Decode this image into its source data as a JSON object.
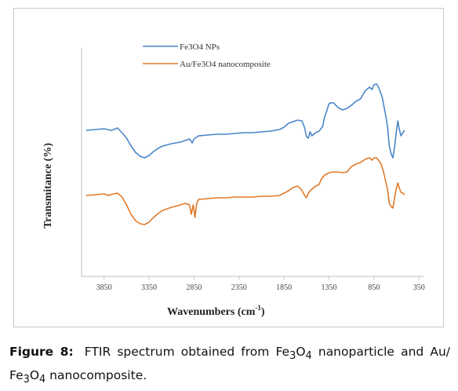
{
  "chart_data": {
    "type": "line",
    "xlabel": "Wavenumbers (cm",
    "xlabel_sup": "-1",
    "xlabel_close": ")",
    "ylabel": "Transmitance (%)",
    "xlim": [
      4100,
      300
    ],
    "x_reversed": true,
    "x_ticks": [
      "3850",
      "3350",
      "2850",
      "2350",
      "1850",
      "1350",
      "850",
      "350"
    ],
    "legend_position": "top-left",
    "grid": false,
    "series": [
      {
        "name": "Fe3O4 NPs",
        "color": "#4a86c8",
        "points": [
          [
            4050,
            155
          ],
          [
            3950,
            154
          ],
          [
            3850,
            153
          ],
          [
            3770,
            155
          ],
          [
            3700,
            152
          ],
          [
            3650,
            158
          ],
          [
            3600,
            165
          ],
          [
            3550,
            175
          ],
          [
            3500,
            183
          ],
          [
            3450,
            188
          ],
          [
            3400,
            190
          ],
          [
            3350,
            187
          ],
          [
            3300,
            182
          ],
          [
            3250,
            178
          ],
          [
            3200,
            175
          ],
          [
            3100,
            172
          ],
          [
            3000,
            170
          ],
          [
            2950,
            168
          ],
          [
            2900,
            166
          ],
          [
            2870,
            171
          ],
          [
            2850,
            166
          ],
          [
            2800,
            162
          ],
          [
            2700,
            161
          ],
          [
            2600,
            160
          ],
          [
            2500,
            160
          ],
          [
            2400,
            159
          ],
          [
            2300,
            158
          ],
          [
            2200,
            158
          ],
          [
            2100,
            157
          ],
          [
            2000,
            156
          ],
          [
            1900,
            154
          ],
          [
            1850,
            151
          ],
          [
            1800,
            146
          ],
          [
            1750,
            144
          ],
          [
            1700,
            142
          ],
          [
            1650,
            143
          ],
          [
            1620,
            152
          ],
          [
            1600,
            163
          ],
          [
            1580,
            165
          ],
          [
            1560,
            157
          ],
          [
            1540,
            162
          ],
          [
            1500,
            158
          ],
          [
            1460,
            156
          ],
          [
            1420,
            150
          ],
          [
            1400,
            138
          ],
          [
            1380,
            132
          ],
          [
            1350,
            121
          ],
          [
            1330,
            120
          ],
          [
            1300,
            120
          ],
          [
            1250,
            126
          ],
          [
            1200,
            129
          ],
          [
            1150,
            127
          ],
          [
            1100,
            123
          ],
          [
            1050,
            118
          ],
          [
            1000,
            115
          ],
          [
            950,
            105
          ],
          [
            900,
            100
          ],
          [
            870,
            103
          ],
          [
            850,
            97
          ],
          [
            820,
            96
          ],
          [
            800,
            100
          ],
          [
            760,
            112
          ],
          [
            720,
            136
          ],
          [
            700,
            150
          ],
          [
            680,
            175
          ],
          [
            660,
            185
          ],
          [
            640,
            190
          ],
          [
            620,
            175
          ],
          [
            600,
            155
          ],
          [
            585,
            143
          ],
          [
            570,
            153
          ],
          [
            550,
            162
          ],
          [
            530,
            158
          ],
          [
            510,
            155
          ]
        ]
      },
      {
        "name": "Au/Fe3O4 nanocomposite",
        "color": "#e07a2a",
        "points": [
          [
            4050,
            238
          ],
          [
            3950,
            237
          ],
          [
            3850,
            236
          ],
          [
            3800,
            238
          ],
          [
            3750,
            236
          ],
          [
            3700,
            235
          ],
          [
            3650,
            240
          ],
          [
            3600,
            250
          ],
          [
            3550,
            262
          ],
          [
            3500,
            270
          ],
          [
            3450,
            274
          ],
          [
            3400,
            275
          ],
          [
            3350,
            272
          ],
          [
            3300,
            266
          ],
          [
            3250,
            261
          ],
          [
            3200,
            257
          ],
          [
            3100,
            253
          ],
          [
            3000,
            250
          ],
          [
            2950,
            248
          ],
          [
            2900,
            250
          ],
          [
            2880,
            262
          ],
          [
            2860,
            250
          ],
          [
            2850,
            256
          ],
          [
            2840,
            266
          ],
          [
            2820,
            248
          ],
          [
            2800,
            243
          ],
          [
            2700,
            242
          ],
          [
            2600,
            241
          ],
          [
            2500,
            241
          ],
          [
            2400,
            240
          ],
          [
            2300,
            240
          ],
          [
            2200,
            240
          ],
          [
            2100,
            239
          ],
          [
            2000,
            239
          ],
          [
            1900,
            238
          ],
          [
            1850,
            235
          ],
          [
            1800,
            232
          ],
          [
            1750,
            228
          ],
          [
            1700,
            226
          ],
          [
            1660,
            230
          ],
          [
            1620,
            238
          ],
          [
            1600,
            241
          ],
          [
            1580,
            235
          ],
          [
            1560,
            232
          ],
          [
            1540,
            230
          ],
          [
            1500,
            226
          ],
          [
            1460,
            224
          ],
          [
            1440,
            218
          ],
          [
            1420,
            215
          ],
          [
            1400,
            212
          ],
          [
            1350,
            209
          ],
          [
            1300,
            208
          ],
          [
            1250,
            208
          ],
          [
            1200,
            209
          ],
          [
            1150,
            208
          ],
          [
            1100,
            201
          ],
          [
            1050,
            198
          ],
          [
            1000,
            196
          ],
          [
            950,
            192
          ],
          [
            900,
            190
          ],
          [
            870,
            193
          ],
          [
            850,
            190
          ],
          [
            820,
            190
          ],
          [
            800,
            193
          ],
          [
            770,
            198
          ],
          [
            740,
            210
          ],
          [
            720,
            220
          ],
          [
            700,
            230
          ],
          [
            680,
            248
          ],
          [
            660,
            252
          ],
          [
            640,
            254
          ],
          [
            620,
            240
          ],
          [
            600,
            228
          ],
          [
            585,
            222
          ],
          [
            570,
            228
          ],
          [
            550,
            234
          ],
          [
            530,
            235
          ],
          [
            510,
            237
          ]
        ]
      }
    ]
  },
  "caption": {
    "label": "Figure 8:",
    "text_1": "FTIR spectrum obtained from Fe",
    "sub_1": "3",
    "text_2": "O",
    "sub_2": "4",
    "text_3": " nanoparticle and Au/ Fe",
    "sub_3": "3",
    "text_4": "O",
    "sub_4": "4",
    "text_5": " nanocomposite."
  }
}
